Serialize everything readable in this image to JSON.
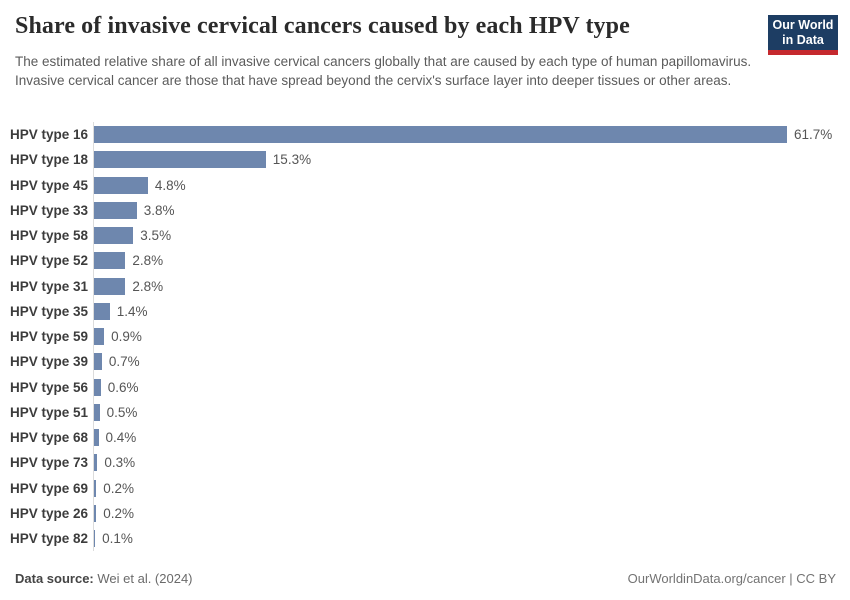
{
  "header": {
    "title": "Share of invasive cervical cancers caused by each HPV type",
    "subtitle": "The estimated relative share of all invasive cervical cancers globally that are caused by each type of human papillomavirus. Invasive cervical cancer are those that have spread beyond the cervix's surface layer into deeper tissues or other areas.",
    "logo": {
      "line1": "Our World",
      "line2": "in Data"
    }
  },
  "chart_data": {
    "type": "bar",
    "orientation": "horizontal",
    "title": "Share of invasive cervical cancers caused by each HPV type",
    "xlabel": "",
    "ylabel": "",
    "xlim": [
      0,
      61.7
    ],
    "grid": false,
    "legend": false,
    "categories": [
      "HPV type 16",
      "HPV type 18",
      "HPV type 45",
      "HPV type 33",
      "HPV type 58",
      "HPV type 52",
      "HPV type 31",
      "HPV type 35",
      "HPV type 59",
      "HPV type 39",
      "HPV type 56",
      "HPV type 51",
      "HPV type 68",
      "HPV type 73",
      "HPV type 69",
      "HPV type 26",
      "HPV type 82"
    ],
    "values": [
      61.7,
      15.3,
      4.8,
      3.8,
      3.5,
      2.8,
      2.8,
      1.4,
      0.9,
      0.7,
      0.6,
      0.5,
      0.4,
      0.3,
      0.2,
      0.2,
      0.1
    ],
    "value_labels": [
      "61.7%",
      "15.3%",
      "4.8%",
      "3.8%",
      "3.5%",
      "2.8%",
      "2.8%",
      "1.4%",
      "0.9%",
      "0.7%",
      "0.6%",
      "0.5%",
      "0.4%",
      "0.3%",
      "0.2%",
      "0.2%",
      "0.1%"
    ]
  },
  "footer": {
    "source_label": "Data source:",
    "source_value": "Wei et al. (2024)",
    "license": "OurWorldinData.org/cancer | CC BY"
  },
  "colors": {
    "bar": "#6e87ae",
    "axis_line": "#dcdcdc",
    "title_text": "#2b2b2b",
    "subtitle_text": "#5b5b5b",
    "label_text": "#3c3c3c",
    "value_text": "#555555",
    "logo_navy": "#1d3d63",
    "logo_red": "#c5292e"
  }
}
